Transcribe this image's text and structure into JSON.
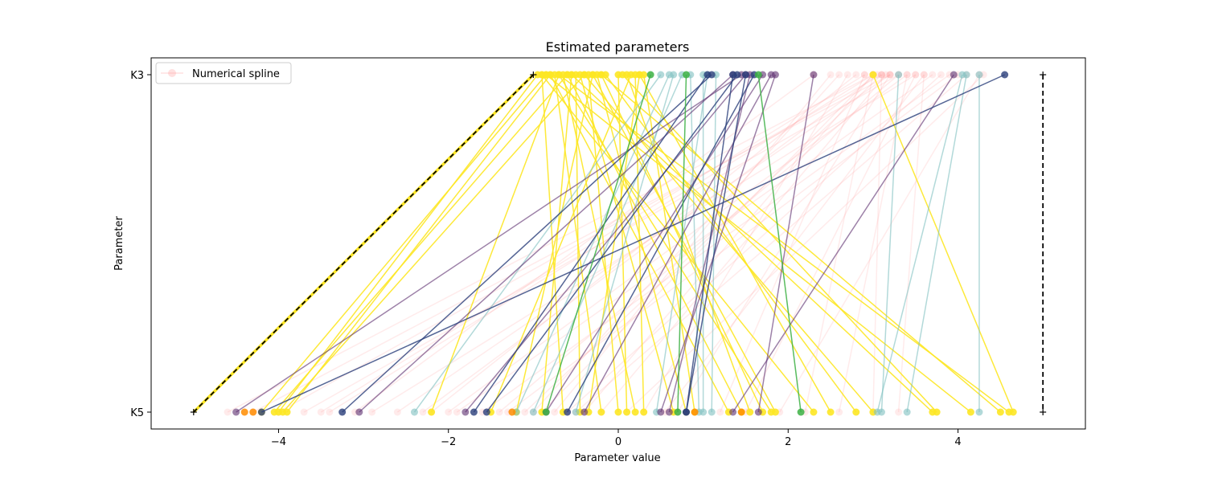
{
  "chart_data": {
    "type": "line",
    "title": "Estimated parameters",
    "xlabel": "Parameter value",
    "ylabel": "Parameter",
    "xlim": [
      -5.5,
      5.5
    ],
    "x_ticks": [
      -4,
      -2,
      0,
      2,
      4
    ],
    "x_tick_labels": [
      "−4",
      "−2",
      "0",
      "2",
      "4"
    ],
    "categories": [
      "K3",
      "K5"
    ],
    "grid": false,
    "legend": {
      "position": "top-left",
      "entries": [
        "Numerical spline"
      ]
    },
    "colors": {
      "numerical_spline": "#ff9999",
      "yellow": "#fde725",
      "teal": "#7fbfbf",
      "purple": "#5b2d6e",
      "navy": "#2a3f7a",
      "green": "#3cb043",
      "orange": "#ff8c00",
      "reference_line": "#000000"
    },
    "reference": [
      {
        "name": "",
        "style": "dashed-black-on-yellow",
        "K3": -1.0,
        "K5": -5.0
      },
      {
        "name": "",
        "style": "dashed-black",
        "K3": 5.0,
        "K5": 5.0
      }
    ],
    "series": [
      {
        "name": "Numerical spline",
        "color_key": "numerical_spline",
        "opacity": 0.2,
        "lines": [
          [
            3.0,
            -4.6
          ],
          [
            3.2,
            -4.3
          ],
          [
            3.1,
            -4.0
          ],
          [
            3.3,
            -3.7
          ],
          [
            2.9,
            -3.5
          ],
          [
            3.0,
            -3.4
          ],
          [
            2.3,
            -3.1
          ],
          [
            3.5,
            -2.9
          ],
          [
            3.2,
            -2.6
          ],
          [
            3.05,
            -2.3
          ],
          [
            2.8,
            -2.2
          ],
          [
            3.4,
            -2.0
          ],
          [
            3.7,
            -1.9
          ],
          [
            3.9,
            -1.6
          ],
          [
            3.3,
            -1.4
          ],
          [
            4.0,
            -1.3
          ],
          [
            3.1,
            -1.1
          ],
          [
            2.6,
            -1.0
          ],
          [
            3.0,
            -0.9
          ],
          [
            2.5,
            -0.75
          ],
          [
            3.8,
            -0.6
          ],
          [
            4.1,
            -0.5
          ],
          [
            3.0,
            -0.4
          ],
          [
            3.15,
            -0.2
          ],
          [
            4.3,
            0.1
          ],
          [
            2.7,
            0.3
          ],
          [
            3.6,
            0.55
          ],
          [
            3.2,
            0.7
          ],
          [
            2.9,
            1.2
          ],
          [
            3.5,
            1.5
          ],
          [
            4.25,
            1.9
          ],
          [
            3.0,
            2.2
          ],
          [
            3.4,
            2.6
          ],
          [
            3.1,
            3.0
          ],
          [
            3.6,
            3.3
          ]
        ]
      },
      {
        "name": "",
        "color_key": "yellow",
        "opacity": 0.9,
        "lines": [
          [
            -0.85,
            -4.2
          ],
          [
            -0.6,
            -4.05
          ],
          [
            -0.4,
            -3.95
          ],
          [
            -0.8,
            -3.9
          ],
          [
            -0.95,
            -4.0
          ],
          [
            -0.7,
            -2.2
          ],
          [
            0.15,
            -1.5
          ],
          [
            -0.3,
            -1.2
          ],
          [
            -0.55,
            -0.9
          ],
          [
            -0.9,
            -0.65
          ],
          [
            -0.5,
            -0.45
          ],
          [
            0.25,
            -0.35
          ],
          [
            -0.75,
            -0.2
          ],
          [
            -0.35,
            0.0
          ],
          [
            0.0,
            0.1
          ],
          [
            -0.65,
            0.2
          ],
          [
            0.2,
            0.3
          ],
          [
            -0.45,
            0.65
          ],
          [
            -0.25,
            0.8
          ],
          [
            0.3,
            0.9
          ],
          [
            -0.8,
            1.3
          ],
          [
            -0.6,
            1.45
          ],
          [
            0.1,
            1.55
          ],
          [
            -0.2,
            1.7
          ],
          [
            -0.7,
            1.8
          ],
          [
            -0.3,
            1.85
          ],
          [
            -0.9,
            2.3
          ],
          [
            0.25,
            2.5
          ],
          [
            -0.15,
            2.8
          ],
          [
            -0.4,
            3.0
          ],
          [
            -0.55,
            3.7
          ],
          [
            0.05,
            3.75
          ],
          [
            -0.85,
            4.15
          ],
          [
            -0.2,
            4.5
          ],
          [
            -0.7,
            4.6
          ],
          [
            3.0,
            4.65
          ]
        ]
      },
      {
        "name": "",
        "color_key": "teal",
        "opacity": 0.6,
        "lines": [
          [
            0.5,
            -2.4
          ],
          [
            0.6,
            -1.2
          ],
          [
            0.75,
            -1.0
          ],
          [
            1.0,
            1.0
          ],
          [
            1.15,
            1.1
          ],
          [
            0.85,
            0.95
          ],
          [
            3.3,
            3.1
          ],
          [
            4.05,
            3.05
          ],
          [
            4.1,
            3.4
          ],
          [
            4.25,
            4.25
          ],
          [
            0.65,
            -0.5
          ],
          [
            1.05,
            0.45
          ]
        ]
      },
      {
        "name": "",
        "color_key": "purple",
        "opacity": 0.6,
        "lines": [
          [
            1.45,
            -4.5
          ],
          [
            1.35,
            -3.05
          ],
          [
            1.5,
            -1.8
          ],
          [
            1.7,
            -0.85
          ],
          [
            1.8,
            -0.4
          ],
          [
            1.85,
            0.5
          ],
          [
            1.55,
            0.6
          ],
          [
            2.3,
            1.65
          ],
          [
            3.95,
            1.35
          ]
        ]
      },
      {
        "name": "",
        "color_key": "navy",
        "opacity": 0.8,
        "lines": [
          [
            4.55,
            -4.2
          ],
          [
            1.1,
            -3.25
          ],
          [
            1.05,
            -1.7
          ],
          [
            1.4,
            -1.55
          ],
          [
            1.6,
            -0.6
          ],
          [
            1.35,
            0.8
          ],
          [
            1.5,
            0.8
          ]
        ]
      },
      {
        "name": "",
        "color_key": "green",
        "opacity": 0.85,
        "lines": [
          [
            0.38,
            -0.85
          ],
          [
            0.8,
            0.7
          ],
          [
            1.65,
            2.15
          ]
        ]
      }
    ],
    "extra_markers_K5": [
      {
        "x": -4.4,
        "color_key": "orange"
      },
      {
        "x": -4.3,
        "color_key": "orange"
      },
      {
        "x": -1.25,
        "color_key": "orange"
      },
      {
        "x": 0.9,
        "color_key": "orange"
      },
      {
        "x": 1.45,
        "color_key": "orange"
      }
    ]
  }
}
